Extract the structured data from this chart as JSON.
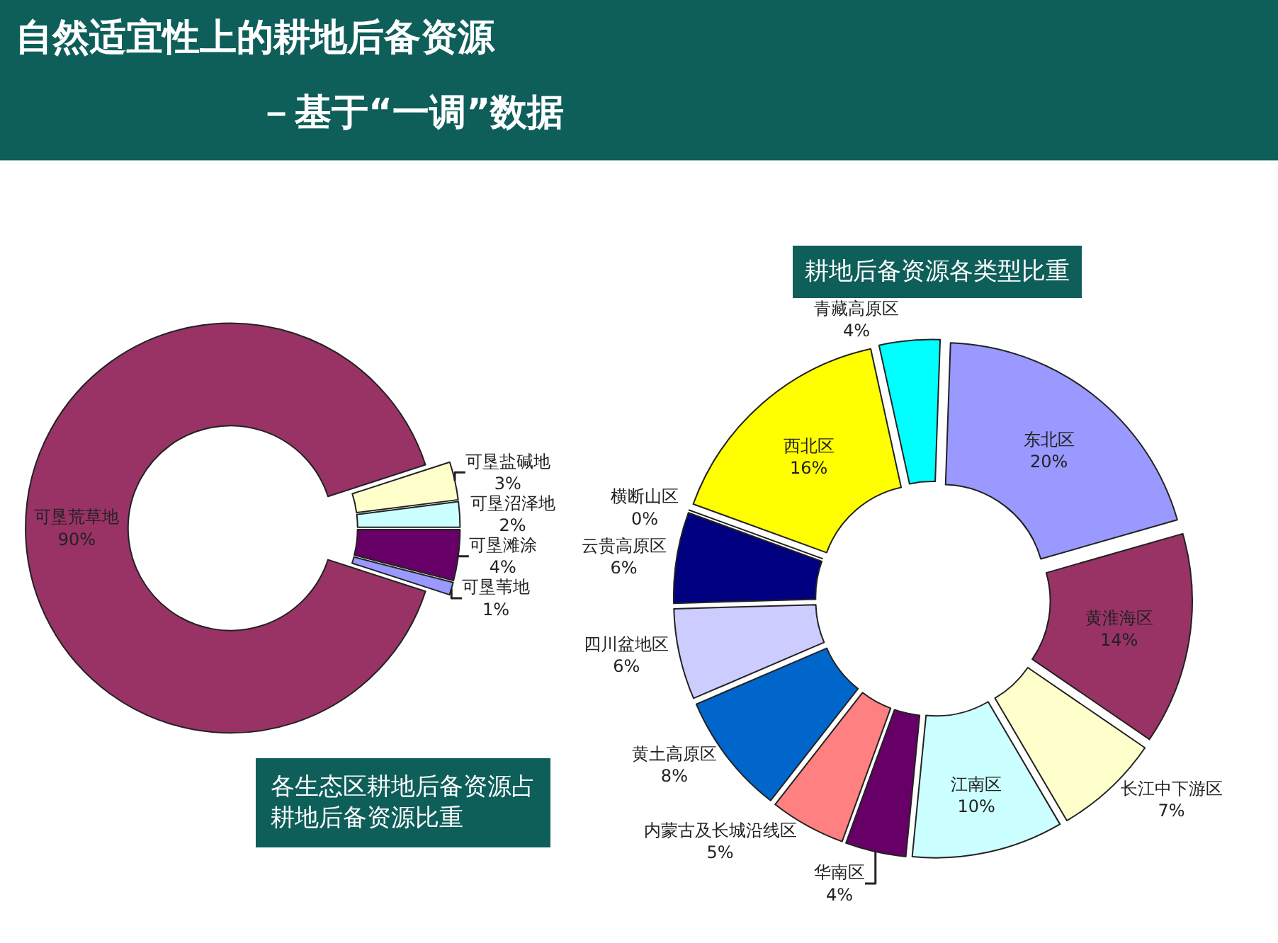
{
  "chart_data": [
    {
      "type": "donut",
      "title": "自然适宜性上的耕地后备资源",
      "subtitle": "－基于“一调”数据",
      "annotations": [
        "耕地后备资源各类型比重"
      ],
      "categories": [
        "可垦盐碱地",
        "可垦沼泽地",
        "可垦滩涂",
        "可垦苇地",
        "可垦荒草地"
      ],
      "values": [
        3,
        2,
        4,
        1,
        90
      ],
      "value_labels": [
        "3%",
        "2%",
        "4%",
        "1%",
        "90%"
      ],
      "colors": [
        "#ffffcc",
        "#ccffff",
        "#660066",
        "#9999ff",
        "#993366"
      ]
    },
    {
      "type": "donut",
      "title": "各生态区耕地后备资源占耕地后备资源比重",
      "categories": [
        "东北区",
        "黄淮海区",
        "长江中下游区",
        "江南区",
        "华南区",
        "内蒙古及长城沿线区",
        "黄土高原区",
        "四川盆地区",
        "云贵高原区",
        "横断山区",
        "西北区",
        "青藏高原区"
      ],
      "values": [
        20,
        14,
        7,
        10,
        4,
        5,
        8,
        6,
        6,
        0,
        16,
        4
      ],
      "value_labels": [
        "20%",
        "14%",
        "7%",
        "10%",
        "4%",
        "5%",
        "8%",
        "6%",
        "6%",
        "0%",
        "16%",
        "4%"
      ],
      "colors": [
        "#9999ff",
        "#993366",
        "#ffffcc",
        "#ccffff",
        "#660066",
        "#ff8080",
        "#0066cc",
        "#ccccff",
        "#000080",
        "#cc33cc",
        "#ffff00",
        "#00ffff"
      ]
    }
  ]
}
